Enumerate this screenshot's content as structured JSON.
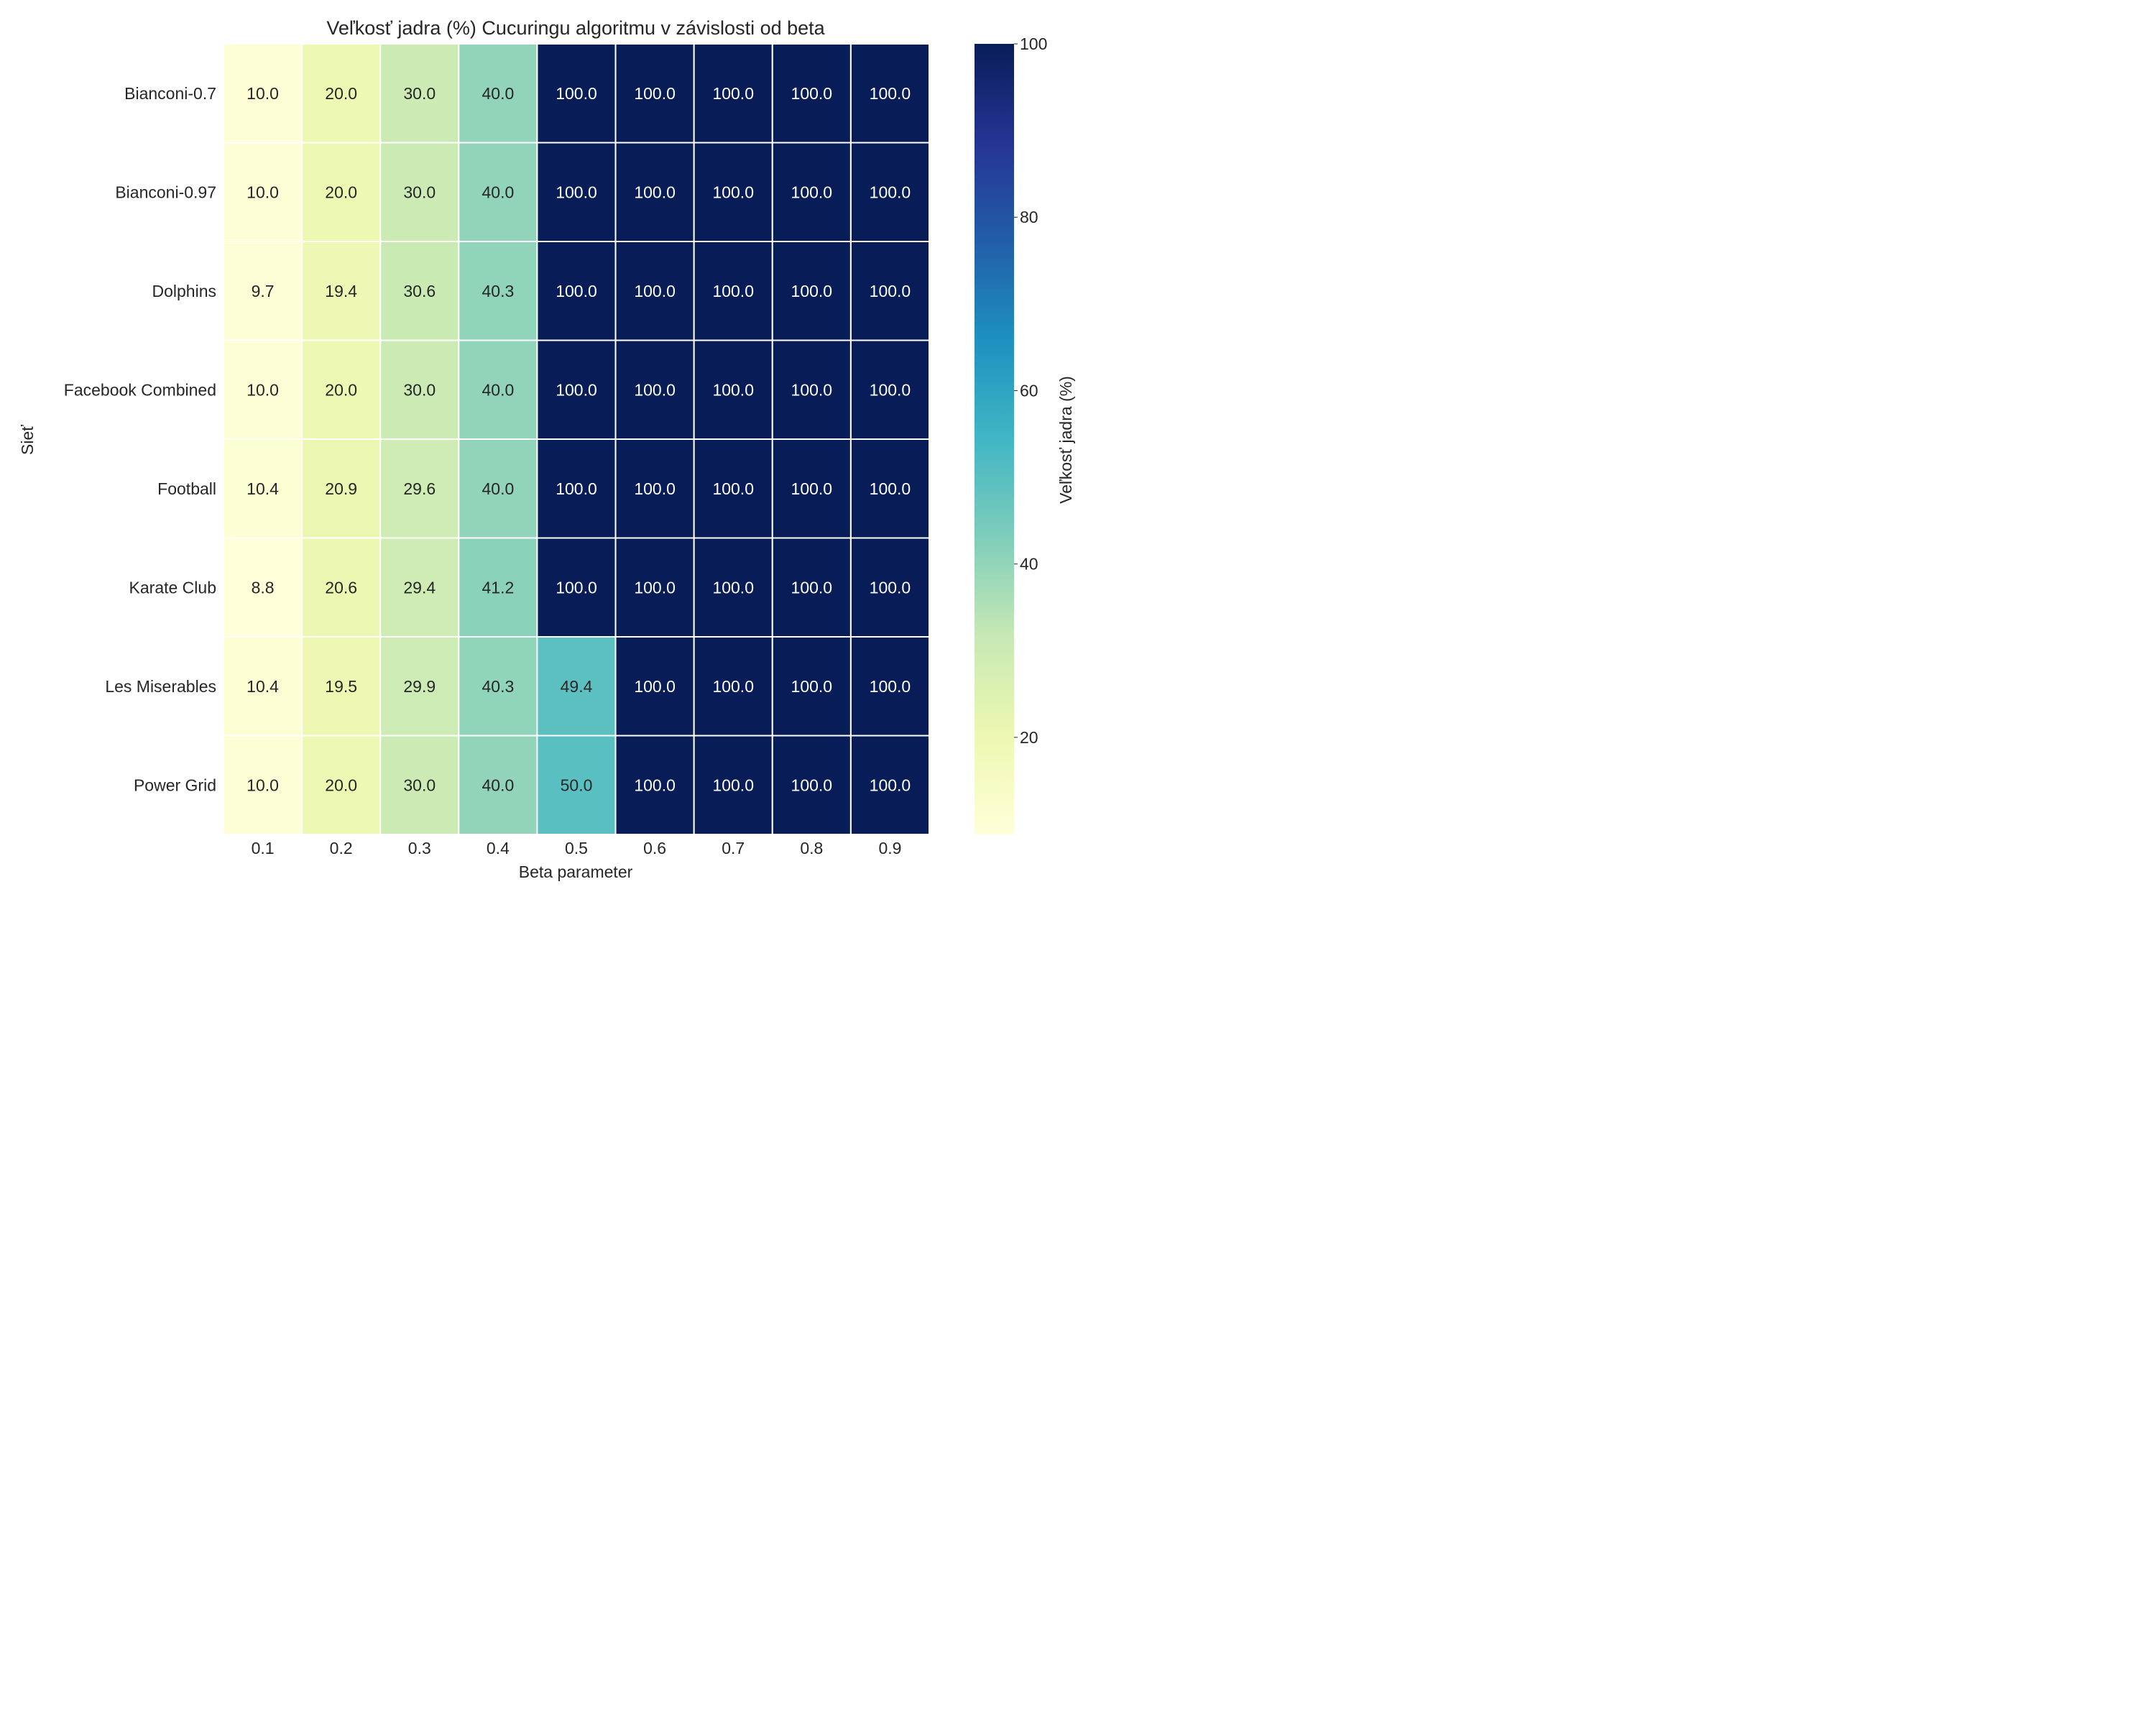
{
  "chart_data": {
    "type": "heatmap",
    "title": "Veľkosť jadra (%) Cucuringu algoritmu v závislosti od beta",
    "xlabel": "Beta parameter",
    "ylabel": "Sieť",
    "x_categories": [
      "0.1",
      "0.2",
      "0.3",
      "0.4",
      "0.5",
      "0.6",
      "0.7",
      "0.8",
      "0.9"
    ],
    "y_categories": [
      "Bianconi-0.7",
      "Bianconi-0.97",
      "Dolphins",
      "Facebook Combined",
      "Football",
      "Karate Club",
      "Les Miserables",
      "Power Grid"
    ],
    "values": [
      [
        10.0,
        20.0,
        30.0,
        40.0,
        100.0,
        100.0,
        100.0,
        100.0,
        100.0
      ],
      [
        10.0,
        20.0,
        30.0,
        40.0,
        100.0,
        100.0,
        100.0,
        100.0,
        100.0
      ],
      [
        9.7,
        19.4,
        30.6,
        40.3,
        100.0,
        100.0,
        100.0,
        100.0,
        100.0
      ],
      [
        10.0,
        20.0,
        30.0,
        40.0,
        100.0,
        100.0,
        100.0,
        100.0,
        100.0
      ],
      [
        10.4,
        20.9,
        29.6,
        40.0,
        100.0,
        100.0,
        100.0,
        100.0,
        100.0
      ],
      [
        8.8,
        20.6,
        29.4,
        41.2,
        100.0,
        100.0,
        100.0,
        100.0,
        100.0
      ],
      [
        10.4,
        19.5,
        29.9,
        40.3,
        49.4,
        100.0,
        100.0,
        100.0,
        100.0
      ],
      [
        10.0,
        20.0,
        30.0,
        40.0,
        50.0,
        100.0,
        100.0,
        100.0,
        100.0
      ]
    ],
    "value_format": "one decimal",
    "colormap": "YlGnBu",
    "colorbar": {
      "label": "Veľkosť jadra (%)",
      "range": [
        8.8,
        100
      ],
      "ticks": [
        "20",
        "40",
        "60",
        "80",
        "100"
      ]
    },
    "grid_lines": "white",
    "legend": "colorbar-right"
  }
}
